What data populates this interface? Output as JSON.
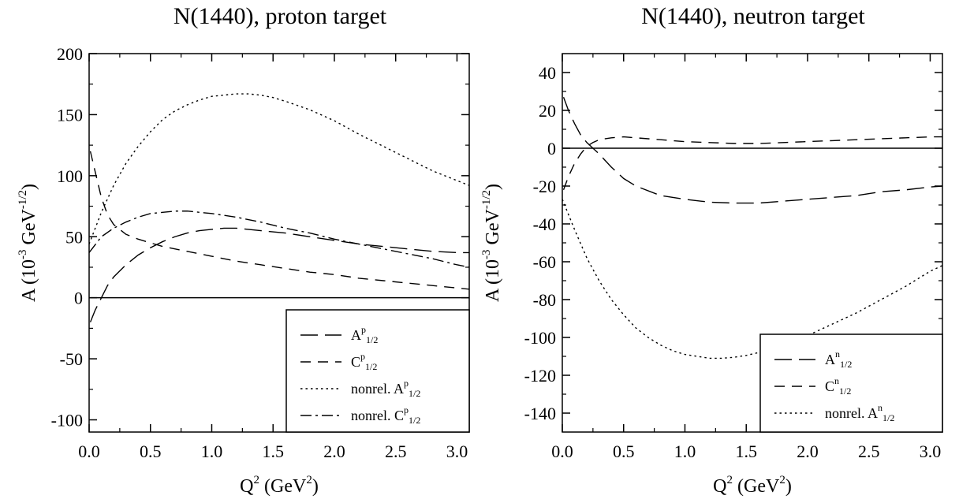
{
  "chart_data": [
    {
      "type": "line",
      "title": "N(1440), proton target",
      "xlabel": {
        "base": "Q",
        "sup": "2",
        "rest": " (GeV",
        "sup2": "2",
        "end": ")"
      },
      "ylabel": {
        "pre": "A (10",
        "sup1": "-3",
        "mid": " GeV",
        "sup2": "-1/2",
        "end": ")"
      },
      "xlim": [
        0,
        3.1
      ],
      "ylim": [
        -110,
        200
      ],
      "xticks": [
        0.0,
        0.5,
        1.0,
        1.5,
        2.0,
        2.5,
        3.0
      ],
      "xtick_labels": [
        "0.0",
        "0.5",
        "1.0",
        "1.5",
        "2.0",
        "2.5",
        "3.0"
      ],
      "yticks": [
        -100,
        -50,
        0,
        50,
        100,
        150,
        200
      ],
      "ytick_labels": [
        "-100",
        "-50",
        "0",
        "50",
        "100",
        "150",
        "200"
      ],
      "zero_line": true,
      "grid": false,
      "legend_position": "bottom-right",
      "series": [
        {
          "legend": {
            "pre": "A",
            "sup": "p",
            "sub": "1/2"
          },
          "dash": "long-dash",
          "x": [
            0.01,
            0.05,
            0.1,
            0.15,
            0.2,
            0.3,
            0.4,
            0.5,
            0.6,
            0.7,
            0.8,
            0.9,
            1.0,
            1.1,
            1.2,
            1.4,
            1.6,
            1.8,
            2.0,
            2.2,
            2.4,
            2.6,
            2.8,
            3.0,
            3.1
          ],
          "y": [
            -20,
            -10,
            0,
            10,
            17,
            27,
            35,
            41,
            46,
            50,
            53,
            55,
            56,
            57,
            57,
            55,
            53,
            50,
            47,
            44,
            42,
            40,
            38,
            37,
            37
          ]
        },
        {
          "legend": {
            "pre": "C",
            "sup": "p",
            "sub": "1/2"
          },
          "dash": "dash",
          "x": [
            0.01,
            0.05,
            0.1,
            0.15,
            0.2,
            0.25,
            0.3,
            0.4,
            0.5,
            0.6,
            0.8,
            1.0,
            1.2,
            1.4,
            1.6,
            1.8,
            2.0,
            2.2,
            2.4,
            2.6,
            2.8,
            3.0,
            3.1
          ],
          "y": [
            120,
            103,
            82,
            68,
            60,
            56,
            52,
            48,
            45,
            42,
            38,
            34,
            30,
            27,
            24,
            21,
            19,
            16,
            14,
            12,
            10,
            8,
            7
          ]
        },
        {
          "legend": {
            "pre": "nonrel. A",
            "sup": "p",
            "sub": "1/2"
          },
          "dash": "dot",
          "x": [
            0.0,
            0.1,
            0.2,
            0.3,
            0.4,
            0.5,
            0.6,
            0.7,
            0.8,
            0.9,
            1.0,
            1.1,
            1.2,
            1.3,
            1.4,
            1.5,
            1.6,
            1.8,
            2.0,
            2.2,
            2.4,
            2.6,
            2.8,
            3.0,
            3.1
          ],
          "y": [
            44,
            70,
            92,
            110,
            124,
            136,
            146,
            153,
            158,
            162,
            165,
            166,
            167,
            167,
            166,
            164,
            161,
            154,
            145,
            134,
            124,
            114,
            104,
            96,
            92
          ]
        },
        {
          "legend": {
            "pre": "nonrel. C",
            "sup": "p",
            "sub": "1/2"
          },
          "dash": "dash-dot",
          "x": [
            0.0,
            0.1,
            0.2,
            0.3,
            0.4,
            0.5,
            0.6,
            0.7,
            0.8,
            0.9,
            1.0,
            1.2,
            1.4,
            1.6,
            1.8,
            2.0,
            2.2,
            2.4,
            2.6,
            2.8,
            3.0,
            3.1
          ],
          "y": [
            37,
            50,
            57,
            62,
            66,
            69,
            70,
            71,
            71,
            70,
            69,
            66,
            62,
            57,
            53,
            48,
            44,
            40,
            36,
            32,
            27,
            25
          ]
        }
      ]
    },
    {
      "type": "line",
      "title": "N(1440), neutron target",
      "xlabel": {
        "base": "Q",
        "sup": "2",
        "rest": " (GeV",
        "sup2": "2",
        "end": ")"
      },
      "ylabel": {
        "pre": "A (10",
        "sup1": "-3",
        "mid": " GeV",
        "sup2": "-1/2",
        "end": ")"
      },
      "xlim": [
        0,
        3.1
      ],
      "ylim": [
        -150,
        50
      ],
      "xticks": [
        0.0,
        0.5,
        1.0,
        1.5,
        2.0,
        2.5,
        3.0
      ],
      "xtick_labels": [
        "0.0",
        "0.5",
        "1.0",
        "1.5",
        "2.0",
        "2.5",
        "3.0"
      ],
      "yticks": [
        -140,
        -120,
        -100,
        -80,
        -60,
        -40,
        -20,
        0,
        20,
        40
      ],
      "ytick_labels": [
        "-140",
        "-120",
        "-100",
        "-80",
        "-60",
        "-40",
        "-20",
        "0",
        "20",
        "40"
      ],
      "zero_line": true,
      "grid": false,
      "legend_position": "bottom-right",
      "series": [
        {
          "legend": {
            "pre": "A",
            "sup": "n",
            "sub": "1/2"
          },
          "dash": "long-dash",
          "x": [
            0.01,
            0.05,
            0.1,
            0.15,
            0.2,
            0.25,
            0.3,
            0.4,
            0.5,
            0.6,
            0.8,
            1.0,
            1.2,
            1.4,
            1.6,
            1.8,
            2.0,
            2.2,
            2.4,
            2.6,
            2.8,
            3.0,
            3.1
          ],
          "y": [
            27,
            20,
            13,
            7,
            3,
            0,
            -3,
            -10,
            -16,
            -20,
            -25,
            -27,
            -28.5,
            -29,
            -29,
            -28,
            -27,
            -26,
            -25,
            -23,
            -22,
            -20.5,
            -20
          ]
        },
        {
          "legend": {
            "pre": "C",
            "sup": "n",
            "sub": "1/2"
          },
          "dash": "dash",
          "x": [
            0.01,
            0.05,
            0.1,
            0.15,
            0.2,
            0.25,
            0.3,
            0.4,
            0.5,
            0.6,
            0.8,
            1.0,
            1.2,
            1.4,
            1.6,
            1.8,
            2.0,
            2.2,
            2.4,
            2.6,
            2.8,
            3.0,
            3.1
          ],
          "y": [
            -22,
            -15,
            -8,
            -3,
            1,
            3,
            4.5,
            5.5,
            6,
            5.5,
            4.5,
            3.5,
            3,
            2.5,
            2.5,
            3,
            3.5,
            4,
            4.5,
            5,
            5.5,
            6,
            6
          ]
        },
        {
          "legend": {
            "pre": "nonrel. A",
            "sup": "n",
            "sub": "1/2"
          },
          "dash": "dot",
          "x": [
            0.0,
            0.1,
            0.2,
            0.3,
            0.4,
            0.5,
            0.6,
            0.7,
            0.8,
            0.9,
            1.0,
            1.1,
            1.2,
            1.3,
            1.4,
            1.5,
            1.6,
            1.7,
            1.8,
            2.0,
            2.2,
            2.4,
            2.6,
            2.8,
            3.0,
            3.1
          ],
          "y": [
            -27,
            -43,
            -58,
            -70,
            -80,
            -88,
            -95,
            -100,
            -104,
            -107,
            -109,
            -110,
            -111,
            -111,
            -110.5,
            -109.5,
            -108,
            -106,
            -104,
            -99,
            -93,
            -87,
            -80,
            -73,
            -65,
            -62
          ]
        }
      ]
    }
  ]
}
